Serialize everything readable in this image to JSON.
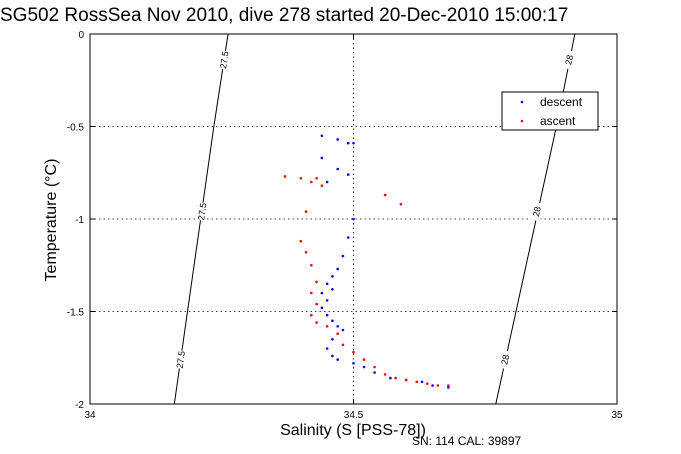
{
  "chart_data": {
    "type": "scatter",
    "title": "SG502 RossSea Nov 2010, dive 278 started 20-Dec-2010 15:00:17",
    "xlabel": "Salinity (S [PSS-78])",
    "ylabel": "Temperature (°C)",
    "xlim": [
      34,
      35
    ],
    "ylim": [
      -2,
      0
    ],
    "xticks": [
      "34",
      "34.5",
      "35"
    ],
    "yticks": [
      "0",
      "-0.5",
      "-1",
      "-1.5",
      "-2"
    ],
    "grid": true,
    "legend_position": "top-right",
    "footnote": "SN: 114  CAL: 39897",
    "series": [
      {
        "name": "descent",
        "color": "#0000ff",
        "points": [
          [
            34.44,
            -0.55
          ],
          [
            34.47,
            -0.57
          ],
          [
            34.49,
            -0.59
          ],
          [
            34.5,
            -0.59
          ],
          [
            34.44,
            -0.67
          ],
          [
            34.47,
            -0.73
          ],
          [
            34.49,
            -0.76
          ],
          [
            34.45,
            -0.8
          ],
          [
            34.5,
            -1.0
          ],
          [
            34.49,
            -1.1
          ],
          [
            34.48,
            -1.2
          ],
          [
            34.47,
            -1.27
          ],
          [
            34.46,
            -1.31
          ],
          [
            34.45,
            -1.35
          ],
          [
            34.44,
            -1.4
          ],
          [
            34.46,
            -1.38
          ],
          [
            34.45,
            -1.44
          ],
          [
            34.44,
            -1.48
          ],
          [
            34.45,
            -1.52
          ],
          [
            34.46,
            -1.55
          ],
          [
            34.47,
            -1.58
          ],
          [
            34.48,
            -1.6
          ],
          [
            34.46,
            -1.65
          ],
          [
            34.45,
            -1.7
          ],
          [
            34.46,
            -1.74
          ],
          [
            34.47,
            -1.76
          ],
          [
            34.5,
            -1.78
          ],
          [
            34.52,
            -1.8
          ],
          [
            34.54,
            -1.83
          ],
          [
            34.57,
            -1.86
          ],
          [
            34.6,
            -1.87
          ],
          [
            34.63,
            -1.88
          ],
          [
            34.65,
            -1.9
          ],
          [
            34.68,
            -1.91
          ]
        ]
      },
      {
        "name": "ascent",
        "color": "#ff0000",
        "points": [
          [
            34.37,
            -0.77
          ],
          [
            34.4,
            -0.78
          ],
          [
            34.42,
            -0.8
          ],
          [
            34.43,
            -0.78
          ],
          [
            34.44,
            -0.82
          ],
          [
            34.56,
            -0.87
          ],
          [
            34.59,
            -0.92
          ],
          [
            34.41,
            -0.96
          ],
          [
            34.4,
            -1.12
          ],
          [
            34.41,
            -1.18
          ],
          [
            34.42,
            -1.25
          ],
          [
            34.43,
            -1.34
          ],
          [
            34.42,
            -1.4
          ],
          [
            34.43,
            -1.46
          ],
          [
            34.42,
            -1.52
          ],
          [
            34.43,
            -1.56
          ],
          [
            34.45,
            -1.58
          ],
          [
            34.47,
            -1.62
          ],
          [
            34.48,
            -1.68
          ],
          [
            34.5,
            -1.72
          ],
          [
            34.52,
            -1.76
          ],
          [
            34.54,
            -1.8
          ],
          [
            34.56,
            -1.84
          ],
          [
            34.58,
            -1.86
          ],
          [
            34.6,
            -1.87
          ],
          [
            34.62,
            -1.88
          ],
          [
            34.64,
            -1.89
          ],
          [
            34.66,
            -1.9
          ],
          [
            34.68,
            -1.9
          ]
        ]
      }
    ],
    "isopycnals": [
      {
        "label": "27.5",
        "path": [
          [
            34.16,
            -2.0
          ],
          [
            34.235,
            -0.5
          ],
          [
            34.262,
            0.0
          ]
        ]
      },
      {
        "label": "28",
        "path": [
          [
            34.77,
            -2.0
          ],
          [
            34.885,
            -0.5
          ],
          [
            34.92,
            0.0
          ]
        ]
      }
    ]
  }
}
